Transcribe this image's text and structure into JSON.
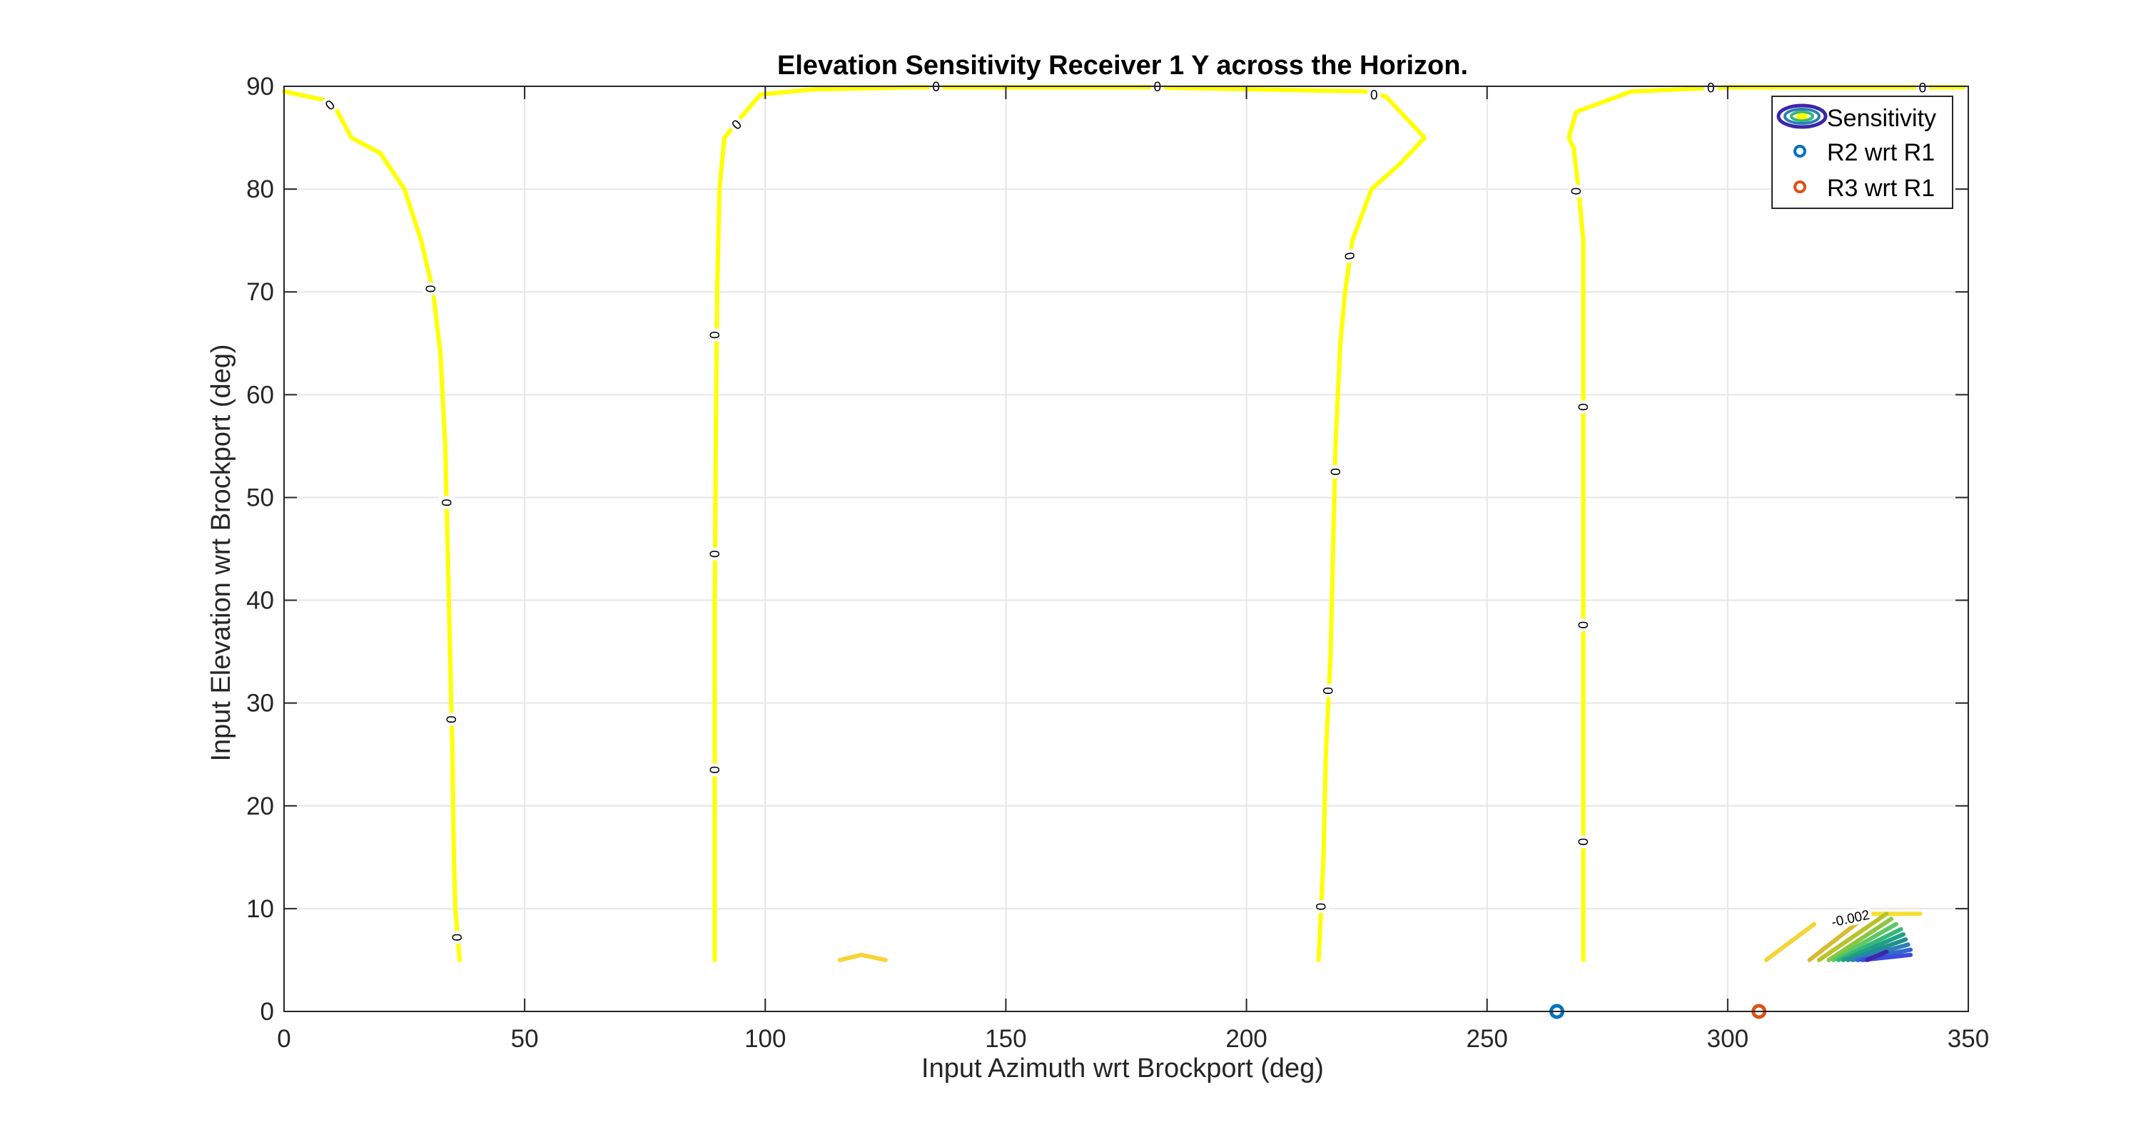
{
  "chart_data": {
    "type": "contour",
    "title": "Elevation Sensitivity Receiver 1 Y across the Horizon.",
    "xlabel": "Input Azimuth wrt Brockport (deg)",
    "ylabel": "Input Elevation wrt Brockport (deg)",
    "xlim": [
      0,
      350
    ],
    "ylim": [
      0,
      90
    ],
    "xticks": [
      0,
      50,
      100,
      150,
      200,
      250,
      300,
      350
    ],
    "yticks": [
      0,
      10,
      20,
      30,
      40,
      50,
      60,
      70,
      80,
      90
    ],
    "xtick_labels": [
      "0",
      "50",
      "100",
      "150",
      "200",
      "250",
      "300",
      "350"
    ],
    "ytick_labels": [
      "0",
      "10",
      "20",
      "30",
      "40",
      "50",
      "60",
      "70",
      "80",
      "90"
    ],
    "grid": true,
    "legend_placement": "top-right",
    "legend": [
      "Sensitivity",
      "R2 wrt R1",
      "R3 wrt R1"
    ],
    "contour_lines": [
      {
        "level": 0,
        "color": "#FFFF00",
        "points": [
          [
            0,
            89.5
          ],
          [
            10,
            88.5
          ],
          [
            14,
            85
          ],
          [
            20,
            83.5
          ],
          [
            25,
            80
          ],
          [
            28.5,
            75
          ],
          [
            31,
            70
          ],
          [
            32.5,
            64
          ],
          [
            33.5,
            55
          ],
          [
            34,
            45
          ],
          [
            34.5,
            35
          ],
          [
            35,
            25
          ],
          [
            35.3,
            15
          ],
          [
            35.6,
            10
          ],
          [
            36.5,
            5
          ]
        ]
      },
      {
        "level": 0,
        "color": "#FFFF00",
        "points": [
          [
            89.5,
            5
          ],
          [
            89.5,
            20
          ],
          [
            89.5,
            40
          ],
          [
            89.8,
            60
          ],
          [
            90,
            70
          ],
          [
            90.5,
            80
          ],
          [
            91.5,
            85
          ],
          [
            95,
            87
          ],
          [
            99,
            89.2
          ],
          [
            110,
            89.7
          ],
          [
            130,
            89.9
          ],
          [
            180,
            89.9
          ],
          [
            225,
            89.5
          ],
          [
            229,
            89
          ],
          [
            237,
            85
          ],
          [
            232,
            82.5
          ],
          [
            226,
            80
          ],
          [
            222,
            75
          ],
          [
            220.5,
            70
          ],
          [
            219.5,
            65
          ],
          [
            218.5,
            55
          ],
          [
            218,
            45
          ],
          [
            217.5,
            35
          ],
          [
            216.5,
            25
          ],
          [
            216,
            15
          ],
          [
            215.5,
            10
          ],
          [
            215,
            5
          ]
        ]
      },
      {
        "level": 0,
        "color": "#FFFF00",
        "points": [
          [
            270,
            5
          ],
          [
            270,
            20
          ],
          [
            270,
            40
          ],
          [
            270,
            60
          ],
          [
            270,
            75
          ],
          [
            269,
            80
          ],
          [
            268,
            84
          ],
          [
            267,
            85
          ],
          [
            268.5,
            87.5
          ],
          [
            280,
            89.5
          ],
          [
            300,
            89.9
          ],
          [
            340,
            89.9
          ],
          [
            349,
            89.9
          ]
        ]
      },
      {
        "level": 0,
        "color": "#F6D436",
        "points": [
          [
            115.5,
            5
          ],
          [
            120,
            5.5
          ],
          [
            125,
            5
          ]
        ]
      },
      {
        "level": 0,
        "color": "#F6D436",
        "points": [
          [
            308,
            5
          ],
          [
            318,
            8.5
          ]
        ]
      },
      {
        "level": -0.001,
        "color": "#D8BB2E",
        "points": [
          [
            317,
            5
          ],
          [
            328,
            9
          ]
        ]
      },
      {
        "level": -0.001,
        "color": "#F3E031",
        "points": [
          [
            325,
            9.5
          ],
          [
            340,
            9.5
          ]
        ]
      },
      {
        "level": -0.002,
        "color": "#B8C32B",
        "points": [
          [
            319,
            5
          ],
          [
            333,
            9.5
          ]
        ]
      },
      {
        "level": -0.002,
        "color": "#8CC53F",
        "points": [
          [
            321,
            5
          ],
          [
            334,
            9
          ]
        ]
      },
      {
        "level": -0.003,
        "color": "#5CC863",
        "points": [
          [
            322,
            5
          ],
          [
            335,
            8.5
          ]
        ]
      },
      {
        "level": -0.003,
        "color": "#35B779",
        "points": [
          [
            323,
            5
          ],
          [
            336,
            8
          ]
        ]
      },
      {
        "level": -0.004,
        "color": "#1FA187",
        "points": [
          [
            324,
            5
          ],
          [
            336.5,
            7.5
          ]
        ]
      },
      {
        "level": -0.004,
        "color": "#21918C",
        "points": [
          [
            325,
            5
          ],
          [
            337,
            7
          ]
        ]
      },
      {
        "level": -0.005,
        "color": "#2C7FB8",
        "points": [
          [
            326,
            5
          ],
          [
            337.5,
            6.5
          ]
        ]
      },
      {
        "level": -0.005,
        "color": "#3366CC",
        "points": [
          [
            327,
            5
          ],
          [
            338,
            6
          ]
        ]
      },
      {
        "level": -0.006,
        "color": "#3B4CE0",
        "points": [
          [
            328,
            5
          ],
          [
            338,
            5.5
          ]
        ]
      },
      {
        "level": -0.006,
        "color": "#3E26A8",
        "points": [
          [
            329,
            5
          ],
          [
            333,
            5.8
          ]
        ]
      }
    ],
    "contour_labels": [
      {
        "text": "0",
        "x": 9.5,
        "y": 88.2,
        "angle": -40
      },
      {
        "text": "0",
        "x": 30.5,
        "y": 70.3,
        "angle": 90
      },
      {
        "text": "0",
        "x": 33.8,
        "y": 49.5,
        "angle": 90
      },
      {
        "text": "0",
        "x": 34.8,
        "y": 28.4,
        "angle": 90
      },
      {
        "text": "0",
        "x": 36,
        "y": 7.2,
        "angle": 90
      },
      {
        "text": "0",
        "x": 89.5,
        "y": 65.8,
        "angle": 90
      },
      {
        "text": "0",
        "x": 89.5,
        "y": 44.5,
        "angle": 90
      },
      {
        "text": "0",
        "x": 89.5,
        "y": 23.5,
        "angle": 90
      },
      {
        "text": "0",
        "x": 94,
        "y": 86.3,
        "angle": -45
      },
      {
        "text": "0",
        "x": 135.5,
        "y": 90,
        "angle": 0
      },
      {
        "text": "0",
        "x": 181.5,
        "y": 90,
        "angle": 0
      },
      {
        "text": "0",
        "x": 226.5,
        "y": 89.2,
        "angle": 0
      },
      {
        "text": "0",
        "x": 221.5,
        "y": 73.5,
        "angle": 80
      },
      {
        "text": "0",
        "x": 218.5,
        "y": 52.5,
        "angle": 90
      },
      {
        "text": "0",
        "x": 217,
        "y": 31.2,
        "angle": 90
      },
      {
        "text": "0",
        "x": 215.5,
        "y": 10.2,
        "angle": 90
      },
      {
        "text": "0",
        "x": 268.5,
        "y": 79.8,
        "angle": 90
      },
      {
        "text": "0",
        "x": 270,
        "y": 58.8,
        "angle": 90
      },
      {
        "text": "0",
        "x": 270,
        "y": 37.6,
        "angle": 90
      },
      {
        "text": "0",
        "x": 270,
        "y": 16.5,
        "angle": 90
      },
      {
        "text": "0",
        "x": 296.5,
        "y": 89.9,
        "angle": 0
      },
      {
        "text": "0",
        "x": 340.5,
        "y": 89.9,
        "angle": 0
      },
      {
        "text": "-0.002",
        "x": 325.5,
        "y": 9.1,
        "angle": -12
      }
    ],
    "markers": [
      {
        "name": "R2 wrt R1",
        "x": 264.5,
        "y": 0,
        "color": "#0072BD"
      },
      {
        "name": "R3 wrt R1",
        "x": 306.5,
        "y": 0,
        "color": "#D95319"
      }
    ],
    "legend_colors": {
      "sensitivity": [
        "#3E26A8",
        "#2C7FB8",
        "#35B779",
        "#FFFF00"
      ]
    }
  }
}
